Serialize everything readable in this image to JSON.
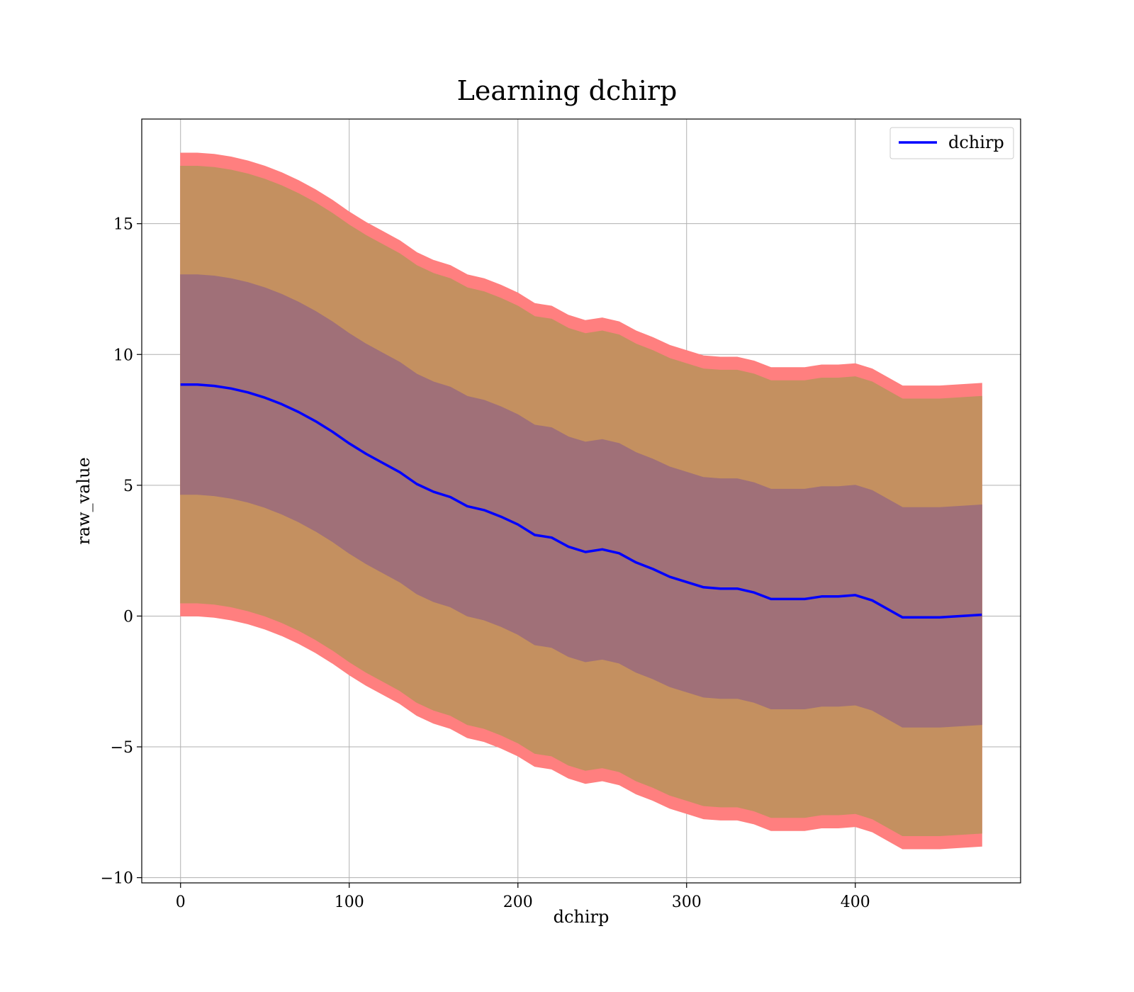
{
  "chart_data": {
    "type": "line",
    "title": "Learning dchirp",
    "xlabel": "dchirp",
    "ylabel": "raw_value",
    "xlim": [
      -23,
      498
    ],
    "ylim": [
      -10.2,
      19
    ],
    "x_ticks": [
      0,
      100,
      200,
      300,
      400
    ],
    "y_ticks": [
      -10,
      -5,
      0,
      5,
      10,
      15
    ],
    "x_tick_labels": [
      "0",
      "100",
      "200",
      "300",
      "400"
    ],
    "y_tick_labels": [
      "−10",
      "−5",
      "0",
      "5",
      "10",
      "15"
    ],
    "grid": true,
    "legend_position": "top-right",
    "series": [
      {
        "name": "dchirp",
        "color": "#0000ff",
        "x": [
          0,
          10,
          20,
          30,
          40,
          50,
          60,
          70,
          80,
          90,
          100,
          110,
          120,
          130,
          140,
          150,
          160,
          170,
          180,
          190,
          200,
          210,
          220,
          230,
          240,
          250,
          260,
          270,
          280,
          290,
          300,
          310,
          320,
          330,
          340,
          350,
          360,
          370,
          380,
          390,
          400,
          410,
          428,
          440,
          450,
          475
        ],
        "y": [
          8.85,
          8.85,
          8.8,
          8.7,
          8.55,
          8.35,
          8.1,
          7.8,
          7.45,
          7.05,
          6.6,
          6.2,
          5.85,
          5.5,
          5.05,
          4.75,
          4.55,
          4.2,
          4.05,
          3.8,
          3.5,
          3.1,
          3.0,
          2.65,
          2.45,
          2.55,
          2.4,
          2.05,
          1.8,
          1.5,
          1.3,
          1.1,
          1.05,
          1.05,
          0.9,
          0.65,
          0.65,
          0.65,
          0.75,
          0.75,
          0.8,
          0.6,
          -0.05,
          -0.05,
          -0.05,
          0.05
        ]
      }
    ],
    "bands": [
      {
        "color": "#ff7f7f",
        "x": [
          0,
          10,
          20,
          30,
          40,
          50,
          60,
          70,
          80,
          90,
          100,
          110,
          120,
          130,
          140,
          150,
          160,
          170,
          180,
          190,
          200,
          210,
          220,
          230,
          240,
          250,
          260,
          270,
          280,
          290,
          300,
          310,
          320,
          330,
          340,
          350,
          360,
          370,
          380,
          390,
          400,
          410,
          428,
          440,
          450,
          475
        ],
        "upper": [
          17.7,
          17.7,
          17.65,
          17.55,
          17.4,
          17.2,
          16.95,
          16.65,
          16.3,
          15.9,
          15.45,
          15.05,
          14.7,
          14.35,
          13.9,
          13.6,
          13.4,
          13.05,
          12.9,
          12.65,
          12.35,
          11.95,
          11.85,
          11.5,
          11.3,
          11.4,
          11.25,
          10.9,
          10.65,
          10.35,
          10.15,
          9.95,
          9.9,
          9.9,
          9.75,
          9.5,
          9.5,
          9.5,
          9.6,
          9.6,
          9.65,
          9.45,
          8.8,
          8.8,
          8.8,
          8.9
        ],
        "lower": [
          0.0,
          0.0,
          -0.05,
          -0.15,
          -0.3,
          -0.5,
          -0.75,
          -1.05,
          -1.4,
          -1.8,
          -2.25,
          -2.65,
          -3.0,
          -3.35,
          -3.8,
          -4.1,
          -4.3,
          -4.65,
          -4.8,
          -5.05,
          -5.35,
          -5.75,
          -5.85,
          -6.2,
          -6.4,
          -6.3,
          -6.45,
          -6.8,
          -7.05,
          -7.35,
          -7.55,
          -7.75,
          -7.8,
          -7.8,
          -7.95,
          -8.2,
          -8.2,
          -8.2,
          -8.1,
          -8.1,
          -8.05,
          -8.25,
          -8.9,
          -8.9,
          -8.9,
          -8.8
        ]
      },
      {
        "color": "#c49060",
        "x": [
          0,
          10,
          20,
          30,
          40,
          50,
          60,
          70,
          80,
          90,
          100,
          110,
          120,
          130,
          140,
          150,
          160,
          170,
          180,
          190,
          200,
          210,
          220,
          230,
          240,
          250,
          260,
          270,
          280,
          290,
          300,
          310,
          320,
          330,
          340,
          350,
          360,
          370,
          380,
          390,
          400,
          410,
          428,
          440,
          450,
          475
        ],
        "upper": [
          17.2,
          17.2,
          17.15,
          17.05,
          16.9,
          16.7,
          16.45,
          16.15,
          15.8,
          15.4,
          14.95,
          14.55,
          14.2,
          13.85,
          13.4,
          13.1,
          12.9,
          12.55,
          12.4,
          12.15,
          11.85,
          11.45,
          11.35,
          11.0,
          10.8,
          10.9,
          10.75,
          10.4,
          10.15,
          9.85,
          9.65,
          9.45,
          9.4,
          9.4,
          9.25,
          9.0,
          9.0,
          9.0,
          9.1,
          9.1,
          9.15,
          8.95,
          8.3,
          8.3,
          8.3,
          8.4
        ],
        "lower": [
          0.5,
          0.5,
          0.45,
          0.35,
          0.2,
          0.0,
          -0.25,
          -0.55,
          -0.9,
          -1.3,
          -1.75,
          -2.15,
          -2.5,
          -2.85,
          -3.3,
          -3.6,
          -3.8,
          -4.15,
          -4.3,
          -4.55,
          -4.85,
          -5.25,
          -5.35,
          -5.7,
          -5.9,
          -5.8,
          -5.95,
          -6.3,
          -6.55,
          -6.85,
          -7.05,
          -7.25,
          -7.3,
          -7.3,
          -7.45,
          -7.7,
          -7.7,
          -7.7,
          -7.6,
          -7.6,
          -7.55,
          -7.75,
          -8.4,
          -8.4,
          -8.4,
          -8.3
        ]
      },
      {
        "color": "#a07078",
        "x": [
          0,
          10,
          20,
          30,
          40,
          50,
          60,
          70,
          80,
          90,
          100,
          110,
          120,
          130,
          140,
          150,
          160,
          170,
          180,
          190,
          200,
          210,
          220,
          230,
          240,
          250,
          260,
          270,
          280,
          290,
          300,
          310,
          320,
          330,
          340,
          350,
          360,
          370,
          380,
          390,
          400,
          410,
          428,
          440,
          450,
          475
        ],
        "upper": [
          13.05,
          13.05,
          13.0,
          12.9,
          12.75,
          12.55,
          12.3,
          12.0,
          11.65,
          11.25,
          10.8,
          10.4,
          10.05,
          9.7,
          9.25,
          8.95,
          8.75,
          8.4,
          8.25,
          8.0,
          7.7,
          7.3,
          7.2,
          6.85,
          6.65,
          6.75,
          6.6,
          6.25,
          6.0,
          5.7,
          5.5,
          5.3,
          5.25,
          5.25,
          5.1,
          4.85,
          4.85,
          4.85,
          4.95,
          4.95,
          5.0,
          4.8,
          4.15,
          4.15,
          4.15,
          4.25
        ],
        "lower": [
          4.65,
          4.65,
          4.6,
          4.5,
          4.35,
          4.15,
          3.9,
          3.6,
          3.25,
          2.85,
          2.4,
          2.0,
          1.65,
          1.3,
          0.85,
          0.55,
          0.35,
          0.0,
          -0.15,
          -0.4,
          -0.7,
          -1.1,
          -1.2,
          -1.55,
          -1.75,
          -1.65,
          -1.8,
          -2.15,
          -2.4,
          -2.7,
          -2.9,
          -3.1,
          -3.15,
          -3.15,
          -3.3,
          -3.55,
          -3.55,
          -3.55,
          -3.45,
          -3.45,
          -3.4,
          -3.6,
          -4.25,
          -4.25,
          -4.25,
          -4.15
        ]
      }
    ]
  }
}
